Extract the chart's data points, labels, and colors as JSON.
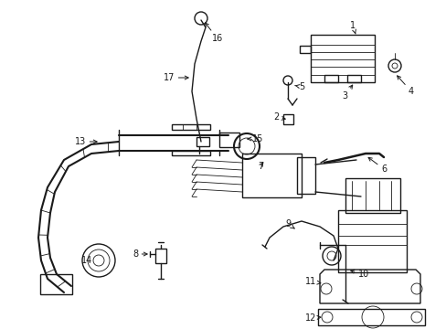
{
  "background_color": "#ffffff",
  "line_color": "#1a1a1a",
  "lw": 1.0,
  "tlw": 0.6,
  "fs": 7.0,
  "fig_w": 4.89,
  "fig_h": 3.6,
  "dpi": 100
}
